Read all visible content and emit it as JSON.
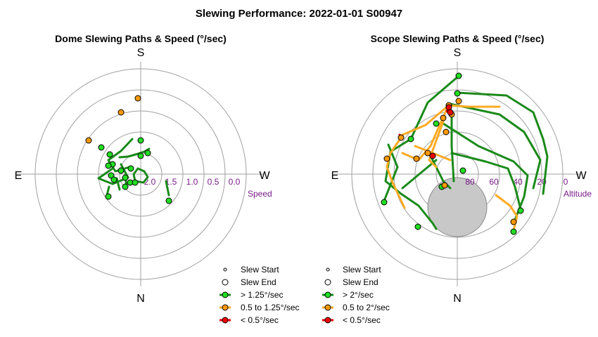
{
  "title": "Slewing Performance: 2022-01-01 S00947",
  "colors": {
    "fast": "#1a8a1a",
    "fastFill": "#22dd22",
    "mid": "#ffaa22",
    "midFill": "#ff9900",
    "slow": "#ee0000",
    "ring": "#a0a0a0",
    "horizon": "#c8c8c8"
  },
  "chart_data": [
    {
      "type": "polar-scatter",
      "title": "Dome Slewing Paths & Speed (°/sec)",
      "directions": {
        "top": "S",
        "bottom": "N",
        "left": "E",
        "right": "W"
      },
      "radial_label": "Speed",
      "radial_ticks": [
        "2.0",
        "1.5",
        "1.0",
        "0.5",
        "0.0"
      ],
      "legend": {
        "start": "Slew Start",
        "end": "Slew End",
        "fast": "> 1.25°/sec",
        "mid": "0.5 to 1.25°/sec",
        "slow": "< 0.5°/sec"
      },
      "segments": [
        {
          "cls": "fast",
          "pts": [
            [
              -40,
              -8
            ],
            [
              -60,
              6
            ],
            [
              -40,
              14
            ],
            [
              -18,
              5
            ],
            [
              -28,
              -14
            ]
          ]
        },
        {
          "cls": "fast",
          "pts": [
            [
              -12,
              -50
            ],
            [
              -28,
              -33
            ],
            [
              -46,
              -20
            ],
            [
              -36,
              -4
            ],
            [
              -16,
              -10
            ]
          ]
        },
        {
          "cls": "fast",
          "pts": [
            [
              -30,
              -24
            ],
            [
              -18,
              -25
            ],
            [
              -7,
              -28
            ],
            [
              5,
              -32
            ],
            [
              12,
              -36
            ]
          ]
        },
        {
          "cls": "fast",
          "pts": [
            [
              -4,
              -8
            ],
            [
              5,
              -4
            ],
            [
              10,
              4
            ],
            [
              4,
              12
            ],
            [
              -8,
              10
            ],
            [
              -10,
              0
            ],
            [
              -4,
              -8
            ]
          ]
        },
        {
          "cls": "fast",
          "pts": [
            [
              -22,
              5
            ],
            [
              -20,
              18
            ]
          ]
        },
        {
          "cls": "fast",
          "pts": [
            [
              -34,
              6
            ],
            [
              -30,
              22
            ]
          ]
        },
        {
          "cls": "fast",
          "pts": [
            [
              36,
              10
            ],
            [
              40,
              30
            ]
          ]
        },
        {
          "cls": "fast",
          "pts": [
            [
              -45,
              18
            ],
            [
              -48,
              30
            ]
          ]
        }
      ],
      "markers": [
        {
          "cls": "mid",
          "x": -4,
          "y": -108,
          "r": 4
        },
        {
          "cls": "mid",
          "x": -28,
          "y": -88,
          "r": 4
        },
        {
          "cls": "mid",
          "x": -74,
          "y": -48,
          "r": 4
        },
        {
          "cls": "fast",
          "x": -56,
          "y": -38,
          "r": 4
        },
        {
          "cls": "fast",
          "x": -44,
          "y": -28,
          "r": 4
        },
        {
          "cls": "fast",
          "x": -40,
          "y": -14,
          "r": 4
        },
        {
          "cls": "fast",
          "x": -46,
          "y": -12,
          "r": 4
        },
        {
          "cls": "fast",
          "x": -42,
          "y": 2,
          "r": 4
        },
        {
          "cls": "fast",
          "x": -38,
          "y": 8,
          "r": 4
        },
        {
          "cls": "fast",
          "x": -28,
          "y": -5,
          "r": 4
        },
        {
          "cls": "fast",
          "x": -22,
          "y": 5,
          "r": 4
        },
        {
          "cls": "fast",
          "x": -22,
          "y": 18,
          "r": 4
        },
        {
          "cls": "fast",
          "x": -15,
          "y": 12,
          "r": 4
        },
        {
          "cls": "fast",
          "x": -14,
          "y": -8,
          "r": 4
        },
        {
          "cls": "fast",
          "x": 0,
          "y": -26,
          "r": 4
        },
        {
          "cls": "fast",
          "x": 10,
          "y": -30,
          "r": 4
        },
        {
          "cls": "fast",
          "x": 0,
          "y": -48,
          "r": 4
        },
        {
          "cls": "fast",
          "x": 40,
          "y": 38,
          "r": 4
        },
        {
          "cls": "fast",
          "x": -46,
          "y": 32,
          "r": 4
        },
        {
          "cls": "fast",
          "x": -8,
          "y": 12,
          "r": 4
        }
      ]
    },
    {
      "type": "polar-scatter",
      "title": "Scope Slewing Paths & Speed (°/sec)",
      "directions": {
        "top": "S",
        "bottom": "N",
        "left": "E",
        "right": "W"
      },
      "radial_label": "Altitude",
      "radial_ticks": [
        "80",
        "60",
        "40",
        "20",
        "0"
      ],
      "legend": {
        "start": "Slew Start",
        "end": "Slew End",
        "fast": "> 2°/sec",
        "mid": "0.5 to 2°/sec",
        "slow": "< 0.5°/sec"
      },
      "segments": [
        {
          "cls": "fast",
          "pts": [
            [
              0,
              -138
            ],
            [
              -42,
              -102
            ],
            [
              -66,
              -50
            ],
            [
              -95,
              -32
            ],
            [
              -102,
              10
            ],
            [
              -80,
              28
            ],
            [
              -55,
              45
            ],
            [
              -35,
              70
            ],
            [
              -30,
              78
            ]
          ]
        },
        {
          "cls": "fast",
          "pts": [
            [
              0,
              -116
            ],
            [
              70,
              -112
            ],
            [
              108,
              -88
            ],
            [
              122,
              -50
            ],
            [
              128,
              -25
            ],
            [
              122,
              28
            ]
          ]
        },
        {
          "cls": "fast",
          "pts": [
            [
              -10,
              -100
            ],
            [
              60,
              -85
            ],
            [
              95,
              -60
            ],
            [
              118,
              -20
            ],
            [
              108,
              20
            ]
          ]
        },
        {
          "cls": "fast",
          "pts": [
            [
              -20,
              -72
            ],
            [
              30,
              -40
            ],
            [
              80,
              -18
            ],
            [
              100,
              2
            ],
            [
              95,
              32
            ],
            [
              80,
              70
            ]
          ]
        },
        {
          "cls": "fast",
          "pts": [
            [
              -8,
              -30
            ],
            [
              40,
              -18
            ],
            [
              72,
              -8
            ],
            [
              82,
              18
            ],
            [
              90,
              50
            ]
          ]
        },
        {
          "cls": "fast",
          "pts": [
            [
              -98,
              -42
            ],
            [
              -85,
              -10
            ],
            [
              -104,
              38
            ]
          ]
        },
        {
          "cls": "fast",
          "pts": [
            [
              -30,
              -20
            ],
            [
              -60,
              5
            ],
            [
              -78,
              20
            ]
          ]
        },
        {
          "cls": "fast",
          "pts": [
            [
              -40,
              -30
            ],
            [
              -20,
              10
            ],
            [
              -10,
              20
            ]
          ]
        },
        {
          "cls": "fast",
          "pts": [
            [
              -8,
              -90
            ],
            [
              -8,
              -40
            ],
            [
              -5,
              10
            ]
          ]
        },
        {
          "cls": "mid",
          "pts": [
            [
              -80,
              -52
            ],
            [
              -95,
              -30
            ],
            [
              -100,
              -10
            ],
            [
              -92,
              12
            ],
            [
              -75,
              48
            ]
          ]
        },
        {
          "cls": "mid",
          "pts": [
            [
              -15,
              -92
            ],
            [
              -25,
              -70
            ],
            [
              -38,
              -40
            ],
            [
              -55,
              -20
            ],
            [
              -78,
              -30
            ]
          ]
        },
        {
          "cls": "mid",
          "pts": [
            [
              -12,
              -98
            ],
            [
              15,
              -96
            ],
            [
              60,
              -96
            ]
          ]
        },
        {
          "cls": "mid",
          "pts": [
            [
              -10,
              -100
            ],
            [
              -45,
              -70
            ],
            [
              -80,
              -55
            ]
          ]
        },
        {
          "cls": "mid",
          "pts": [
            [
              -60,
              -40
            ],
            [
              -35,
              -30
            ],
            [
              -10,
              -20
            ]
          ]
        },
        {
          "cls": "mid",
          "pts": [
            [
              55,
              30
            ],
            [
              75,
              45
            ],
            [
              85,
              60
            ],
            [
              80,
              80
            ]
          ]
        },
        {
          "cls": "mid",
          "pts": [
            [
              -20,
              -75
            ],
            [
              -40,
              -20
            ],
            [
              -30,
              -10
            ]
          ]
        },
        {
          "cls": "slow",
          "pts": [
            [
              -15,
              -90
            ],
            [
              -10,
              -85
            ]
          ]
        },
        {
          "cls": "slow",
          "pts": [
            [
              -82,
              -56
            ],
            [
              -78,
              -50
            ]
          ]
        },
        {
          "cls": "slow",
          "pts": [
            [
              -38,
              -26
            ],
            [
              -34,
              -24
            ]
          ]
        }
      ],
      "markers": [
        {
          "cls": "fast",
          "x": 2,
          "y": -140,
          "r": 4
        },
        {
          "cls": "fast",
          "x": 0,
          "y": -115,
          "r": 4
        },
        {
          "cls": "fast",
          "x": -66,
          "y": -50,
          "r": 4
        },
        {
          "cls": "fast",
          "x": -30,
          "y": -72,
          "r": 4
        },
        {
          "cls": "fast",
          "x": 8,
          "y": -5,
          "r": 4
        },
        {
          "cls": "fast",
          "x": -22,
          "y": 18,
          "r": 4
        },
        {
          "cls": "fast",
          "x": -104,
          "y": 40,
          "r": 4
        },
        {
          "cls": "fast",
          "x": -56,
          "y": 75,
          "r": 4
        },
        {
          "cls": "fast",
          "x": 80,
          "y": 82,
          "r": 4
        },
        {
          "cls": "fast",
          "x": 90,
          "y": 52,
          "r": 4
        },
        {
          "cls": "mid",
          "x": -12,
          "y": -98,
          "r": 4
        },
        {
          "cls": "mid",
          "x": -80,
          "y": -52,
          "r": 4
        },
        {
          "cls": "mid",
          "x": -100,
          "y": -22,
          "r": 4
        },
        {
          "cls": "mid",
          "x": -58,
          "y": -22,
          "r": 4
        },
        {
          "cls": "mid",
          "x": -42,
          "y": -30,
          "r": 4
        },
        {
          "cls": "mid",
          "x": -20,
          "y": -80,
          "r": 4
        },
        {
          "cls": "mid",
          "x": -16,
          "y": -60,
          "r": 4
        },
        {
          "cls": "mid",
          "x": -8,
          "y": -85,
          "r": 4
        },
        {
          "cls": "mid",
          "x": 2,
          "y": -104,
          "r": 4
        },
        {
          "cls": "mid",
          "x": -18,
          "y": 16,
          "r": 4
        },
        {
          "cls": "mid",
          "x": 80,
          "y": 68,
          "r": 4
        },
        {
          "cls": "slow",
          "x": -12,
          "y": -95,
          "r": 4
        },
        {
          "cls": "slow",
          "x": -10,
          "y": -88,
          "r": 4
        },
        {
          "cls": "slow",
          "x": -35,
          "y": -26,
          "r": 4
        }
      ],
      "horizon": {
        "cx": 0,
        "cy": 47,
        "r": 42
      }
    }
  ]
}
